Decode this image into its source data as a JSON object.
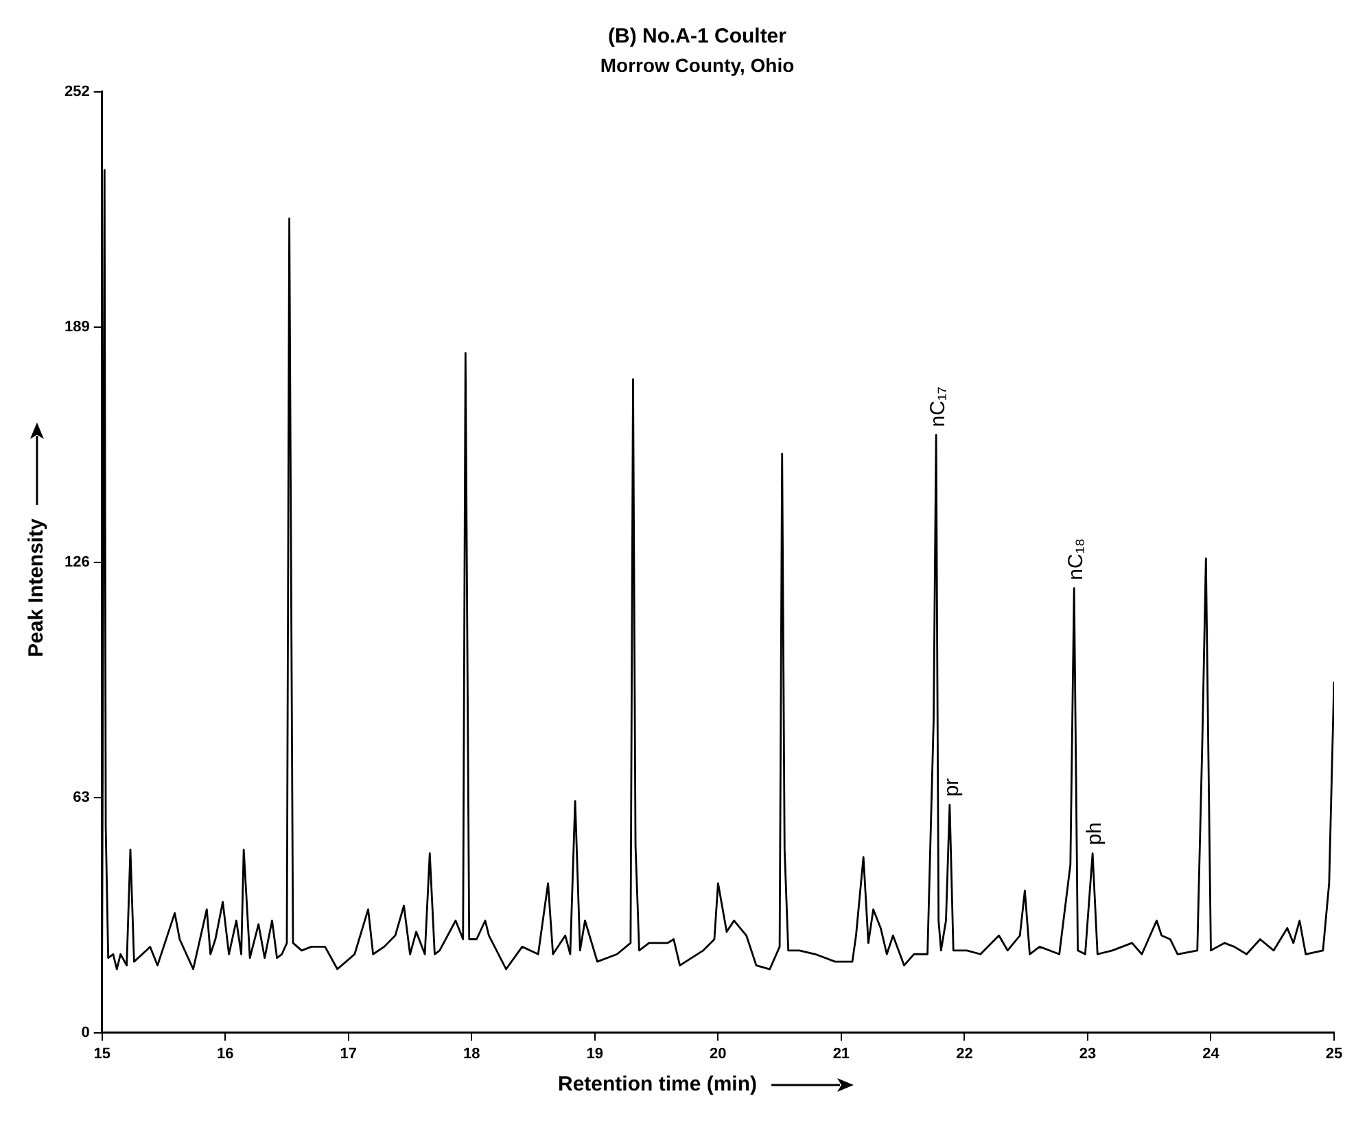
{
  "chart_data": {
    "type": "line",
    "title": "(B) No.A-1 Coulter",
    "subtitle": "Morrow County, Ohio",
    "xlabel": "Retention time (min)",
    "ylabel": "Peak Intensity",
    "xlim": [
      15,
      25
    ],
    "xticks": [
      15,
      16,
      17,
      18,
      19,
      20,
      21,
      22,
      23,
      24,
      25
    ],
    "ylim": [
      0,
      252
    ],
    "yticks": [
      0,
      63,
      126,
      189,
      252
    ],
    "grid": false,
    "legend": false,
    "marker": "none",
    "line_style": "solid",
    "series": [
      {
        "color": "#000000",
        "x": [
          15.0,
          15.02,
          15.03,
          15.05,
          15.09,
          15.12,
          15.15,
          15.2,
          15.23,
          15.26,
          15.36,
          15.39,
          15.45,
          15.59,
          15.63,
          15.74,
          15.85,
          15.88,
          15.92,
          15.98,
          16.03,
          16.09,
          16.13,
          16.15,
          16.2,
          16.27,
          16.32,
          16.38,
          16.42,
          16.46,
          16.5,
          16.52,
          16.55,
          16.62,
          16.7,
          16.81,
          16.91,
          17.05,
          17.16,
          17.2,
          17.29,
          17.38,
          17.45,
          17.5,
          17.55,
          17.62,
          17.66,
          17.7,
          17.74,
          17.87,
          17.93,
          17.95,
          17.98,
          18.04,
          18.11,
          18.14,
          18.28,
          18.41,
          18.54,
          18.62,
          18.66,
          18.76,
          18.8,
          18.84,
          18.88,
          18.92,
          19.02,
          19.18,
          19.29,
          19.31,
          19.33,
          19.36,
          19.44,
          19.59,
          19.64,
          19.69,
          19.88,
          19.97,
          20.0,
          20.07,
          20.13,
          20.23,
          20.31,
          20.42,
          20.5,
          20.52,
          20.54,
          20.57,
          20.66,
          20.79,
          20.95,
          21.09,
          21.12,
          21.18,
          21.22,
          21.26,
          21.32,
          21.37,
          21.42,
          21.51,
          21.59,
          21.7,
          21.75,
          21.77,
          21.79,
          21.81,
          21.85,
          21.88,
          21.91,
          22.02,
          22.13,
          22.28,
          22.35,
          22.45,
          22.49,
          22.53,
          22.61,
          22.77,
          22.86,
          22.89,
          22.92,
          22.98,
          23.04,
          23.08,
          23.2,
          23.36,
          23.44,
          23.56,
          23.6,
          23.67,
          23.73,
          23.89,
          23.93,
          23.96,
          24.0,
          24.11,
          24.19,
          24.29,
          24.4,
          24.51,
          24.62,
          24.67,
          24.72,
          24.77,
          24.91,
          24.96,
          25.0
        ],
        "values": [
          18,
          231,
          55,
          20,
          21,
          17,
          21,
          18,
          49,
          19,
          22,
          23,
          18,
          32,
          25,
          17,
          33,
          21,
          25,
          35,
          21,
          30,
          21,
          49,
          20,
          29,
          20,
          30,
          20,
          21,
          24,
          218,
          24,
          22,
          23,
          23,
          17,
          21,
          33,
          21,
          23,
          26,
          34,
          21,
          27,
          21,
          48,
          21,
          22,
          30,
          25,
          182,
          25,
          25,
          30,
          26,
          17,
          23,
          21,
          40,
          21,
          26,
          21,
          62,
          22,
          30,
          19,
          21,
          24,
          175,
          50,
          22,
          24,
          24,
          25,
          18,
          22,
          25,
          40,
          27,
          30,
          26,
          18,
          17,
          23,
          155,
          49,
          22,
          22,
          21,
          19,
          19,
          26,
          47,
          24,
          33,
          28,
          21,
          26,
          18,
          21,
          21,
          84,
          160,
          30,
          22,
          30,
          61,
          22,
          22,
          21,
          26,
          22,
          26,
          38,
          21,
          23,
          21,
          45,
          119,
          22,
          21,
          48,
          21,
          22,
          24,
          21,
          30,
          26,
          25,
          21,
          22,
          77,
          127,
          22,
          24,
          23,
          21,
          25,
          22,
          28,
          24,
          30,
          21,
          22,
          40,
          94
        ]
      }
    ],
    "annotations": [
      {
        "text": "nC₁₇",
        "x": 21.77,
        "y": 160
      },
      {
        "text": "pr",
        "x": 21.88,
        "y": 61
      },
      {
        "text": "nC₁₈",
        "x": 22.89,
        "y": 119
      },
      {
        "text": "ph",
        "x": 23.04,
        "y": 48
      }
    ]
  }
}
